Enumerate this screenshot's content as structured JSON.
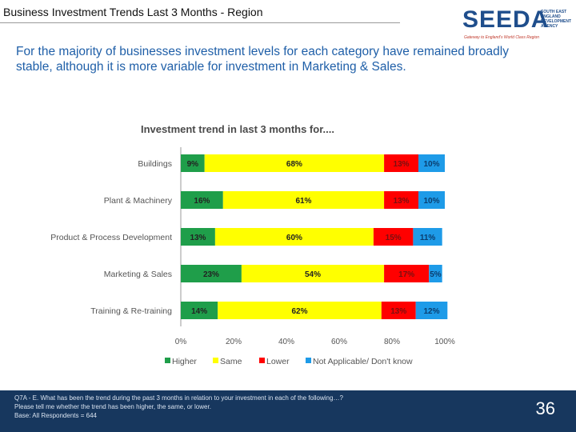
{
  "header": {
    "title": "Business Investment Trends Last 3 Months - Region",
    "logo_text": "SEEDA",
    "logo_tagline": "Gateway to England's World Class Region",
    "logo_org": [
      "SOUTH EAST",
      "ENGLAND",
      "DEVELOPMENT",
      "AGENCY"
    ]
  },
  "lead_text": "For the majority of businesses investment levels for each category have remained broadly stable, although it is more variable for investment in Marketing & Sales.",
  "colors": {
    "higher": "#1f9e4a",
    "same": "#ffff00",
    "lower": "#ff0000",
    "na": "#1e9be8",
    "title": "#4a4a4a",
    "label": "#555555"
  },
  "chart_data": {
    "type": "bar",
    "orientation": "horizontal",
    "stacked": true,
    "title": "Investment trend in last 3 months for....",
    "categories": [
      "Buildings",
      "Plant & Machinery",
      "Product & Process Development",
      "Marketing & Sales",
      "Training & Re-training"
    ],
    "series": [
      {
        "name": "Higher",
        "values": [
          9,
          16,
          13,
          23,
          14
        ],
        "labels": [
          "9%",
          "16%",
          "13%",
          "23%",
          "14%"
        ]
      },
      {
        "name": "Same",
        "values": [
          68,
          61,
          60,
          54,
          62
        ],
        "labels": [
          "68%",
          "61%",
          "60%",
          "54%",
          "62%"
        ]
      },
      {
        "name": "Lower",
        "values": [
          13,
          13,
          15,
          17,
          13
        ],
        "labels": [
          "13%",
          "13%",
          "15%",
          "17%",
          "13%"
        ]
      },
      {
        "name": "Not Applicable/ Don't know",
        "values": [
          10,
          10,
          11,
          5,
          12
        ],
        "labels": [
          "10%",
          "10%",
          "11%",
          "5%",
          "12%"
        ]
      }
    ],
    "xticks": [
      "0%",
      "20%",
      "40%",
      "60%",
      "80%",
      "100%"
    ],
    "xlim": [
      0,
      100
    ],
    "legend_position": "bottom"
  },
  "footer": {
    "question": "Q7A - E. What has been the trend during the past 3 months in relation to your investment in each of the following…?",
    "instruction": "Please tell me whether the trend has been higher, the same, or lower.",
    "base": "Base: All Respondents = 644",
    "page_number": "36"
  }
}
